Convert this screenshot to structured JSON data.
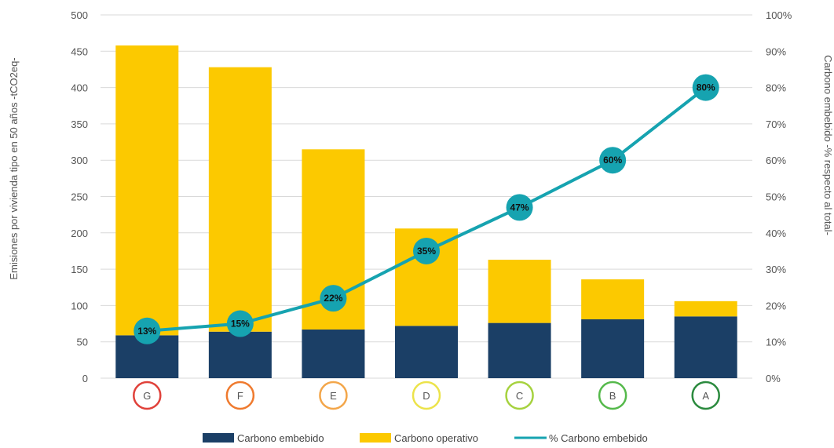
{
  "chart_data": {
    "type": "bar",
    "stacked": true,
    "categories": [
      "G",
      "F",
      "E",
      "D",
      "C",
      "B",
      "A"
    ],
    "category_colors": [
      "#e0413a",
      "#ef7a2e",
      "#f3a64a",
      "#ece34a",
      "#a6d23f",
      "#55b94b",
      "#2b8a3e"
    ],
    "series": [
      {
        "name": "Carbono embebido",
        "type": "bar",
        "color": "#1b3f66",
        "values": [
          59,
          64,
          67,
          72,
          76,
          81,
          85
        ]
      },
      {
        "name": "Carbono operativo",
        "type": "bar",
        "color": "#fcc900",
        "values": [
          399,
          364,
          248,
          134,
          87,
          55,
          21
        ]
      },
      {
        "name": "% Carbono embebido",
        "type": "line",
        "axis": "right",
        "color": "#16a3b0",
        "values": [
          13,
          15,
          22,
          35,
          47,
          60,
          80
        ],
        "labels": [
          "13%",
          "15%",
          "22%",
          "35%",
          "47%",
          "60%",
          "80%"
        ]
      }
    ],
    "ylabel": "Emisiones  por vivienda tipo en 50 años -tCO2eq-",
    "ylabel_right": "Carbono embebido -% respecto al total-",
    "ylim": [
      0,
      500
    ],
    "ylim_right": [
      0,
      100
    ],
    "yticks": [
      "0",
      "50",
      "100",
      "150",
      "200",
      "250",
      "300",
      "350",
      "400",
      "450",
      "500"
    ],
    "yticks_right": [
      "0%",
      "10%",
      "20%",
      "30%",
      "40%",
      "50%",
      "60%",
      "70%",
      "80%",
      "90%",
      "100%"
    ],
    "grid": true,
    "legend_position": "bottom"
  }
}
